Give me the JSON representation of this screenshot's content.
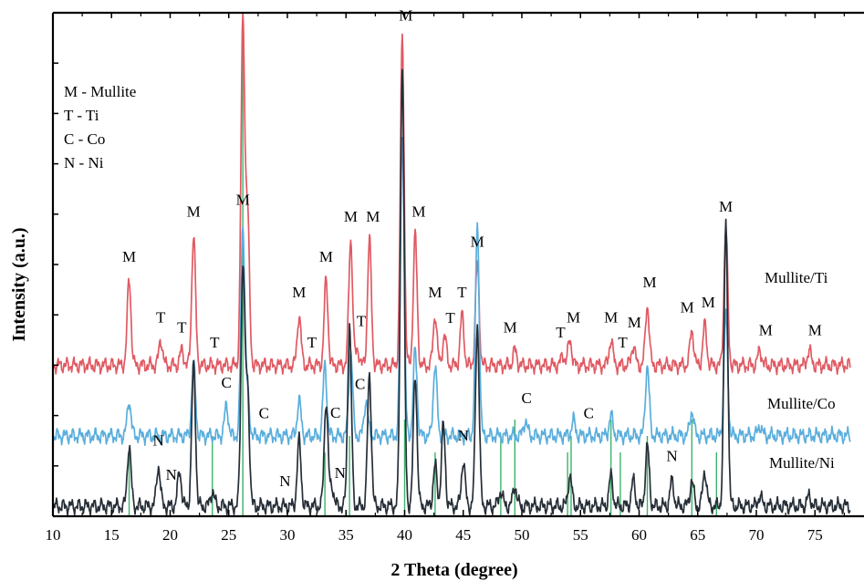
{
  "chart_data": {
    "type": "line",
    "xlabel": "2 Theta (degree)",
    "ylabel": "Intensity (a.u.)",
    "xlim": [
      10,
      78
    ],
    "ylim": [
      0,
      100
    ],
    "x_ticks": [
      10,
      15,
      20,
      25,
      30,
      35,
      40,
      45,
      50,
      55,
      60,
      65,
      70,
      75
    ],
    "legend_key": [
      "M - Mullite",
      "T - Ti",
      "C - Co",
      "N - Ni"
    ],
    "series": [
      {
        "name": "Mullite/Ti",
        "color": "#e05a63",
        "baseline": 30,
        "points": [
          [
            16.5,
            47
          ],
          [
            19.2,
            35
          ],
          [
            21.0,
            33
          ],
          [
            22.0,
            56
          ],
          [
            26.2,
            98
          ],
          [
            26.6,
            60
          ],
          [
            31.0,
            40
          ],
          [
            33.3,
            47
          ],
          [
            35.4,
            55
          ],
          [
            36.0,
            33
          ],
          [
            37.0,
            55
          ],
          [
            39.8,
            95
          ],
          [
            40.9,
            56
          ],
          [
            42.6,
            40
          ],
          [
            43.4,
            36
          ],
          [
            44.9,
            40
          ],
          [
            46.2,
            50
          ],
          [
            49.4,
            33
          ],
          [
            53.5,
            32
          ],
          [
            54.1,
            35
          ],
          [
            57.6,
            35
          ],
          [
            59.5,
            34
          ],
          [
            60.7,
            42
          ],
          [
            64.5,
            37
          ],
          [
            65.6,
            38
          ],
          [
            67.4,
            57
          ],
          [
            70.3,
            33
          ],
          [
            74.5,
            33
          ]
        ]
      },
      {
        "name": "Mullite/Co",
        "color": "#5aaedc",
        "baseline": 16,
        "points": [
          [
            16.5,
            23
          ],
          [
            22.0,
            30
          ],
          [
            24.8,
            22
          ],
          [
            26.2,
            58
          ],
          [
            26.6,
            24
          ],
          [
            31.0,
            23
          ],
          [
            33.2,
            30
          ],
          [
            35.4,
            33
          ],
          [
            36.7,
            23
          ],
          [
            39.8,
            76
          ],
          [
            40.9,
            33
          ],
          [
            42.6,
            30
          ],
          [
            46.2,
            58
          ],
          [
            50.3,
            19
          ],
          [
            54.4,
            19
          ],
          [
            57.6,
            20
          ],
          [
            60.7,
            30
          ],
          [
            64.5,
            21
          ],
          [
            67.4,
            40
          ],
          [
            70.3,
            18
          ]
        ]
      },
      {
        "name": "Mullite/Ni",
        "color": "#262e37",
        "baseline": 2,
        "points": [
          [
            16.5,
            14
          ],
          [
            19.0,
            10
          ],
          [
            20.8,
            9
          ],
          [
            22.0,
            30
          ],
          [
            23.6,
            5
          ],
          [
            26.2,
            50
          ],
          [
            26.6,
            25
          ],
          [
            31.0,
            15
          ],
          [
            33.3,
            23
          ],
          [
            33.8,
            6
          ],
          [
            35.3,
            38
          ],
          [
            37.0,
            28
          ],
          [
            39.8,
            90
          ],
          [
            40.9,
            28
          ],
          [
            42.6,
            10
          ],
          [
            43.3,
            18
          ],
          [
            45.0,
            11
          ],
          [
            46.2,
            38
          ],
          [
            48.2,
            5
          ],
          [
            49.4,
            6
          ],
          [
            54.1,
            8
          ],
          [
            57.6,
            8
          ],
          [
            59.5,
            7
          ],
          [
            60.7,
            14
          ],
          [
            62.8,
            7
          ],
          [
            64.5,
            7
          ],
          [
            65.6,
            9
          ],
          [
            67.4,
            58
          ],
          [
            70.3,
            4
          ],
          [
            74.5,
            4
          ]
        ]
      }
    ],
    "peak_labels": [
      {
        "label": "M",
        "x": 16.5,
        "series": "Mullite/Ti"
      },
      {
        "label": "T",
        "x": 19.2,
        "series": "Mullite/Ti"
      },
      {
        "label": "T",
        "x": 21.0,
        "series": "Mullite/Ti"
      },
      {
        "label": "M",
        "x": 22.0,
        "series": "Mullite/Ti"
      },
      {
        "label": "T",
        "x": 23.8,
        "series": "Mullite/Ti"
      },
      {
        "label": "M",
        "x": 26.2,
        "series": "Mullite/Co"
      },
      {
        "label": "M",
        "x": 31.0,
        "series": "Mullite/Ti"
      },
      {
        "label": "T",
        "x": 32.1,
        "series": "Mullite/Ti"
      },
      {
        "label": "M",
        "x": 33.3,
        "series": "Mullite/Ti"
      },
      {
        "label": "M",
        "x": 35.4,
        "series": "Mullite/Ti"
      },
      {
        "label": "T",
        "x": 36.3,
        "series": "Mullite/Ti"
      },
      {
        "label": "M",
        "x": 37.3,
        "series": "Mullite/Ti"
      },
      {
        "label": "M",
        "x": 40.1,
        "series": "Mullite/Ti"
      },
      {
        "label": "M",
        "x": 41.2,
        "series": "Mullite/Ti"
      },
      {
        "label": "M",
        "x": 42.6,
        "series": "Mullite/Ti"
      },
      {
        "label": "T",
        "x": 43.9,
        "series": "Mullite/Ti"
      },
      {
        "label": "T",
        "x": 44.9,
        "series": "Mullite/Ti"
      },
      {
        "label": "M",
        "x": 46.2,
        "series": "Mullite/Ti"
      },
      {
        "label": "M",
        "x": 49.0,
        "series": "Mullite/Ti"
      },
      {
        "label": "T",
        "x": 53.3,
        "series": "Mullite/Ti"
      },
      {
        "label": "M",
        "x": 54.4,
        "series": "Mullite/Ti"
      },
      {
        "label": "M",
        "x": 57.6,
        "series": "Mullite/Ti"
      },
      {
        "label": "T",
        "x": 58.6,
        "series": "Mullite/Ti"
      },
      {
        "label": "M",
        "x": 59.6,
        "series": "Mullite/Ti"
      },
      {
        "label": "M",
        "x": 60.9,
        "series": "Mullite/Ti"
      },
      {
        "label": "M",
        "x": 64.1,
        "series": "Mullite/Ti"
      },
      {
        "label": "M",
        "x": 65.9,
        "series": "Mullite/Ti"
      },
      {
        "label": "M",
        "x": 67.4,
        "series": "Mullite/Ti"
      },
      {
        "label": "M",
        "x": 70.8,
        "series": "Mullite/Ti"
      },
      {
        "label": "M",
        "x": 75.0,
        "series": "Mullite/Ti"
      },
      {
        "label": "C",
        "x": 24.8,
        "series": "Mullite/Co"
      },
      {
        "label": "C",
        "x": 28.0,
        "series": "Mullite/Co"
      },
      {
        "label": "C",
        "x": 34.1,
        "series": "Mullite/Co"
      },
      {
        "label": "C",
        "x": 36.2,
        "series": "Mullite/Co"
      },
      {
        "label": "C",
        "x": 50.4,
        "series": "Mullite/Co"
      },
      {
        "label": "C",
        "x": 55.7,
        "series": "Mullite/Co"
      },
      {
        "label": "N",
        "x": 19.0,
        "series": "Mullite/Ni"
      },
      {
        "label": "N",
        "x": 20.1,
        "series": "Mullite/Ni"
      },
      {
        "label": "N",
        "x": 29.8,
        "series": "Mullite/Ni"
      },
      {
        "label": "N",
        "x": 34.5,
        "series": "Mullite/Ni"
      },
      {
        "label": "N",
        "x": 45.0,
        "series": "Mullite/Ni"
      },
      {
        "label": "N",
        "x": 62.8,
        "series": "Mullite/Ni"
      }
    ],
    "green_reference_lines": [
      16.5,
      23.6,
      26.2,
      33.2,
      35.3,
      40.0,
      42.6,
      48.2,
      49.4,
      53.9,
      54.2,
      57.6,
      58.4,
      60.7,
      64.5,
      66.6
    ]
  }
}
